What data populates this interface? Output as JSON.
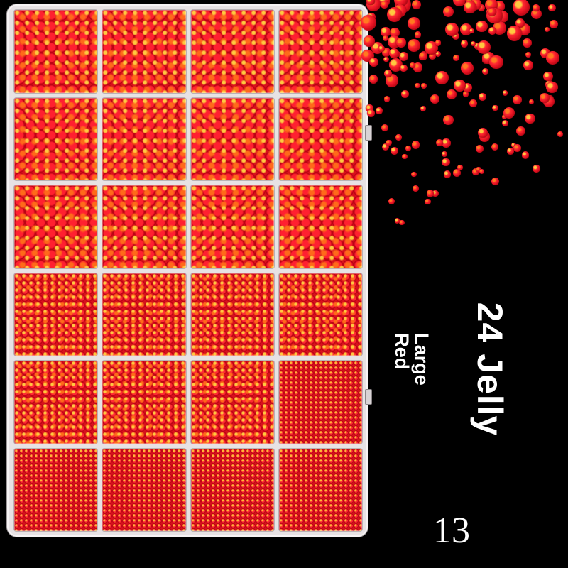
{
  "product": {
    "title": "24 Jelly",
    "subtitle_line1": "Large",
    "subtitle_line2": "Red",
    "number": "13"
  },
  "organizer": {
    "compartments": [
      "large",
      "large",
      "large",
      "large",
      "large",
      "large",
      "large",
      "large",
      "large",
      "large",
      "large",
      "large",
      "medium",
      "medium",
      "medium",
      "medium",
      "medium",
      "medium",
      "medium",
      "small",
      "small",
      "small",
      "small",
      "small"
    ]
  },
  "colors": {
    "background": "#000000",
    "gem_red": "#e01020",
    "gem_highlight": "#ffc940",
    "box": "#e7e2e4"
  }
}
